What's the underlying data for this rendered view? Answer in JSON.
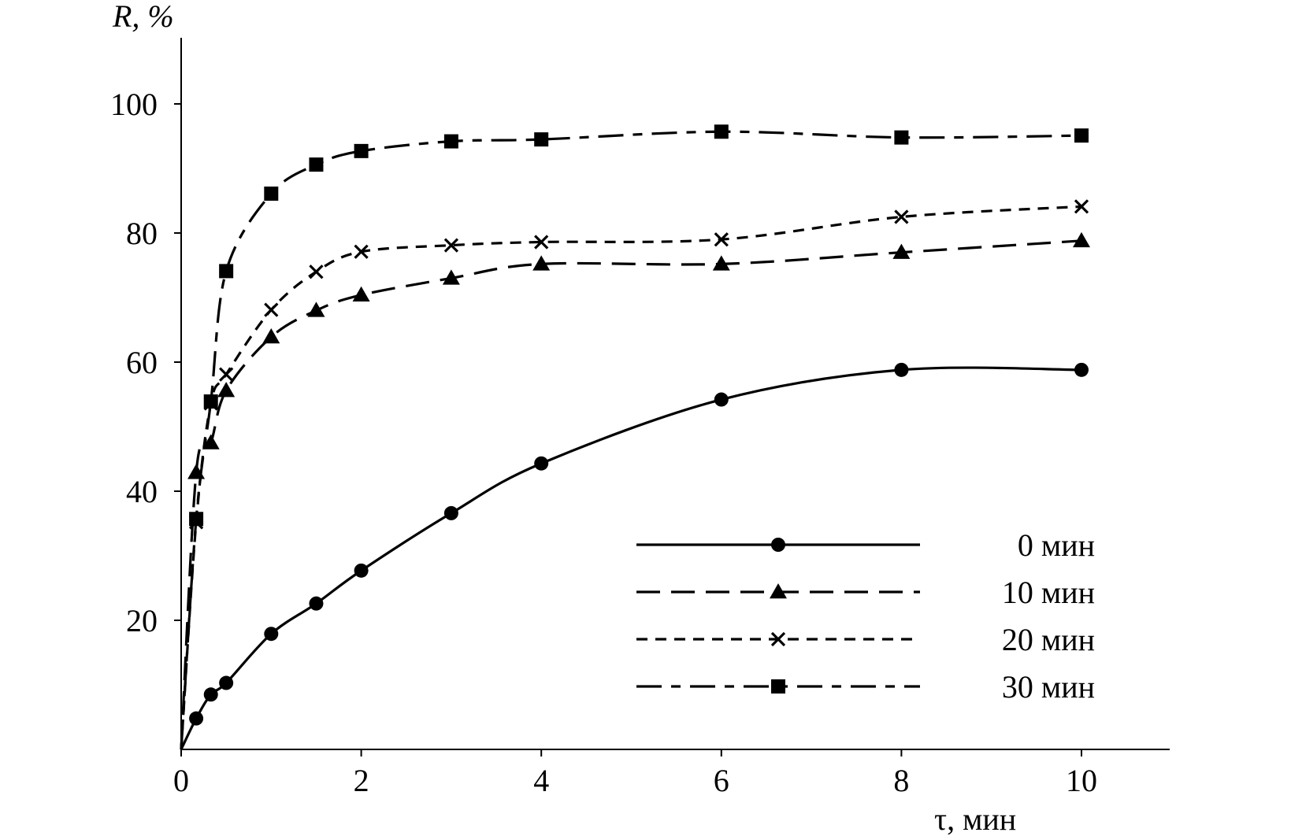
{
  "chart_data": {
    "type": "line",
    "title": "",
    "xlabel": "τ, мин",
    "ylabel": "R, %",
    "xlim": [
      0,
      11
    ],
    "ylim": [
      0,
      110
    ],
    "x_ticks": [
      0,
      2,
      4,
      6,
      8,
      10
    ],
    "x_tick_labels": [
      "0",
      "2",
      "4",
      "6",
      "8",
      "10"
    ],
    "y_ticks": [
      20,
      40,
      60,
      80,
      100
    ],
    "y_tick_labels": [
      "20",
      "40",
      "60",
      "80",
      "100"
    ],
    "grid": false,
    "legend_position": "bottom-right",
    "series": [
      {
        "name": "0 мин",
        "marker": "circle",
        "dash": "solid",
        "x": [
          0,
          0.167,
          0.33,
          0.5,
          1,
          1.5,
          2,
          3,
          4,
          6,
          8,
          10
        ],
        "y": [
          0,
          4.8,
          8.5,
          10.3,
          17.9,
          22.6,
          27.7,
          36.6,
          44.3,
          54.2,
          58.8,
          58.8
        ]
      },
      {
        "name": "10 мин",
        "marker": "triangle",
        "dash": "long-dash",
        "x": [
          0,
          0.167,
          0.33,
          0.5,
          1,
          1.5,
          2,
          3,
          4,
          6,
          8,
          10
        ],
        "y": [
          0,
          42.9,
          47.5,
          55.6,
          63.9,
          68.0,
          70.4,
          73.0,
          75.2,
          75.2,
          77.0,
          78.8
        ]
      },
      {
        "name": "20 мин",
        "marker": "cross",
        "dash": "short-dash",
        "x": [
          0,
          0.167,
          0.33,
          0.5,
          1,
          1.5,
          2,
          3,
          4,
          6,
          8,
          10
        ],
        "y": [
          0,
          35.2,
          53.6,
          58.1,
          68.1,
          74.0,
          77.1,
          78.1,
          78.6,
          79.0,
          82.5,
          84.1
        ]
      },
      {
        "name": "30 мин",
        "marker": "square",
        "dash": "dash-dot",
        "x": [
          0,
          0.167,
          0.33,
          0.5,
          1,
          1.5,
          2,
          3,
          4,
          6,
          8,
          10
        ],
        "y": [
          0,
          35.7,
          53.9,
          74.1,
          86.1,
          90.6,
          92.7,
          94.2,
          94.5,
          95.7,
          94.8,
          95.1
        ]
      }
    ]
  }
}
